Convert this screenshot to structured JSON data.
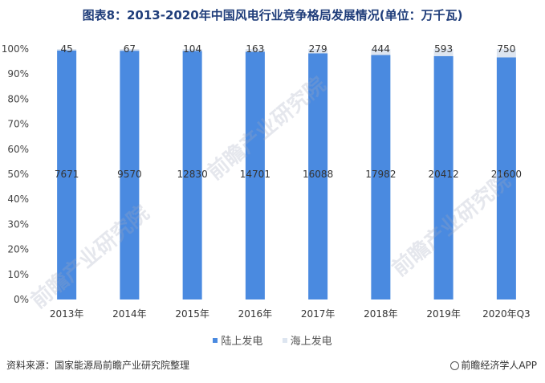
{
  "title": "图表8：2013-2020年中国风电行业竞争格局发展情况(单位：万千瓦)",
  "source": "资料来源：国家能源局前瞻产业研究院整理",
  "brand": "前瞻经济学人APP",
  "watermark": "前瞻产业研究院",
  "colors": {
    "onshore": "#4a8ae0",
    "offshore": "#dde5f0",
    "title": "#1f3d7a"
  },
  "chart_data": {
    "type": "bar",
    "stacked": "percent",
    "categories": [
      "2013年",
      "2014年",
      "2015年",
      "2016年",
      "2017年",
      "2018年",
      "2019年",
      "2020年Q3"
    ],
    "series": [
      {
        "name": "陆上发电",
        "values": [
          7671,
          9570,
          12830,
          14701,
          16088,
          17982,
          20412,
          21600
        ]
      },
      {
        "name": "海上发电",
        "values": [
          45,
          67,
          104,
          163,
          279,
          444,
          593,
          750
        ]
      }
    ],
    "yticks": [
      "0%",
      "10%",
      "20%",
      "30%",
      "40%",
      "50%",
      "60%",
      "70%",
      "80%",
      "90%",
      "100%"
    ],
    "ylim": [
      0,
      100
    ],
    "legend": "bottom",
    "grid": false
  }
}
